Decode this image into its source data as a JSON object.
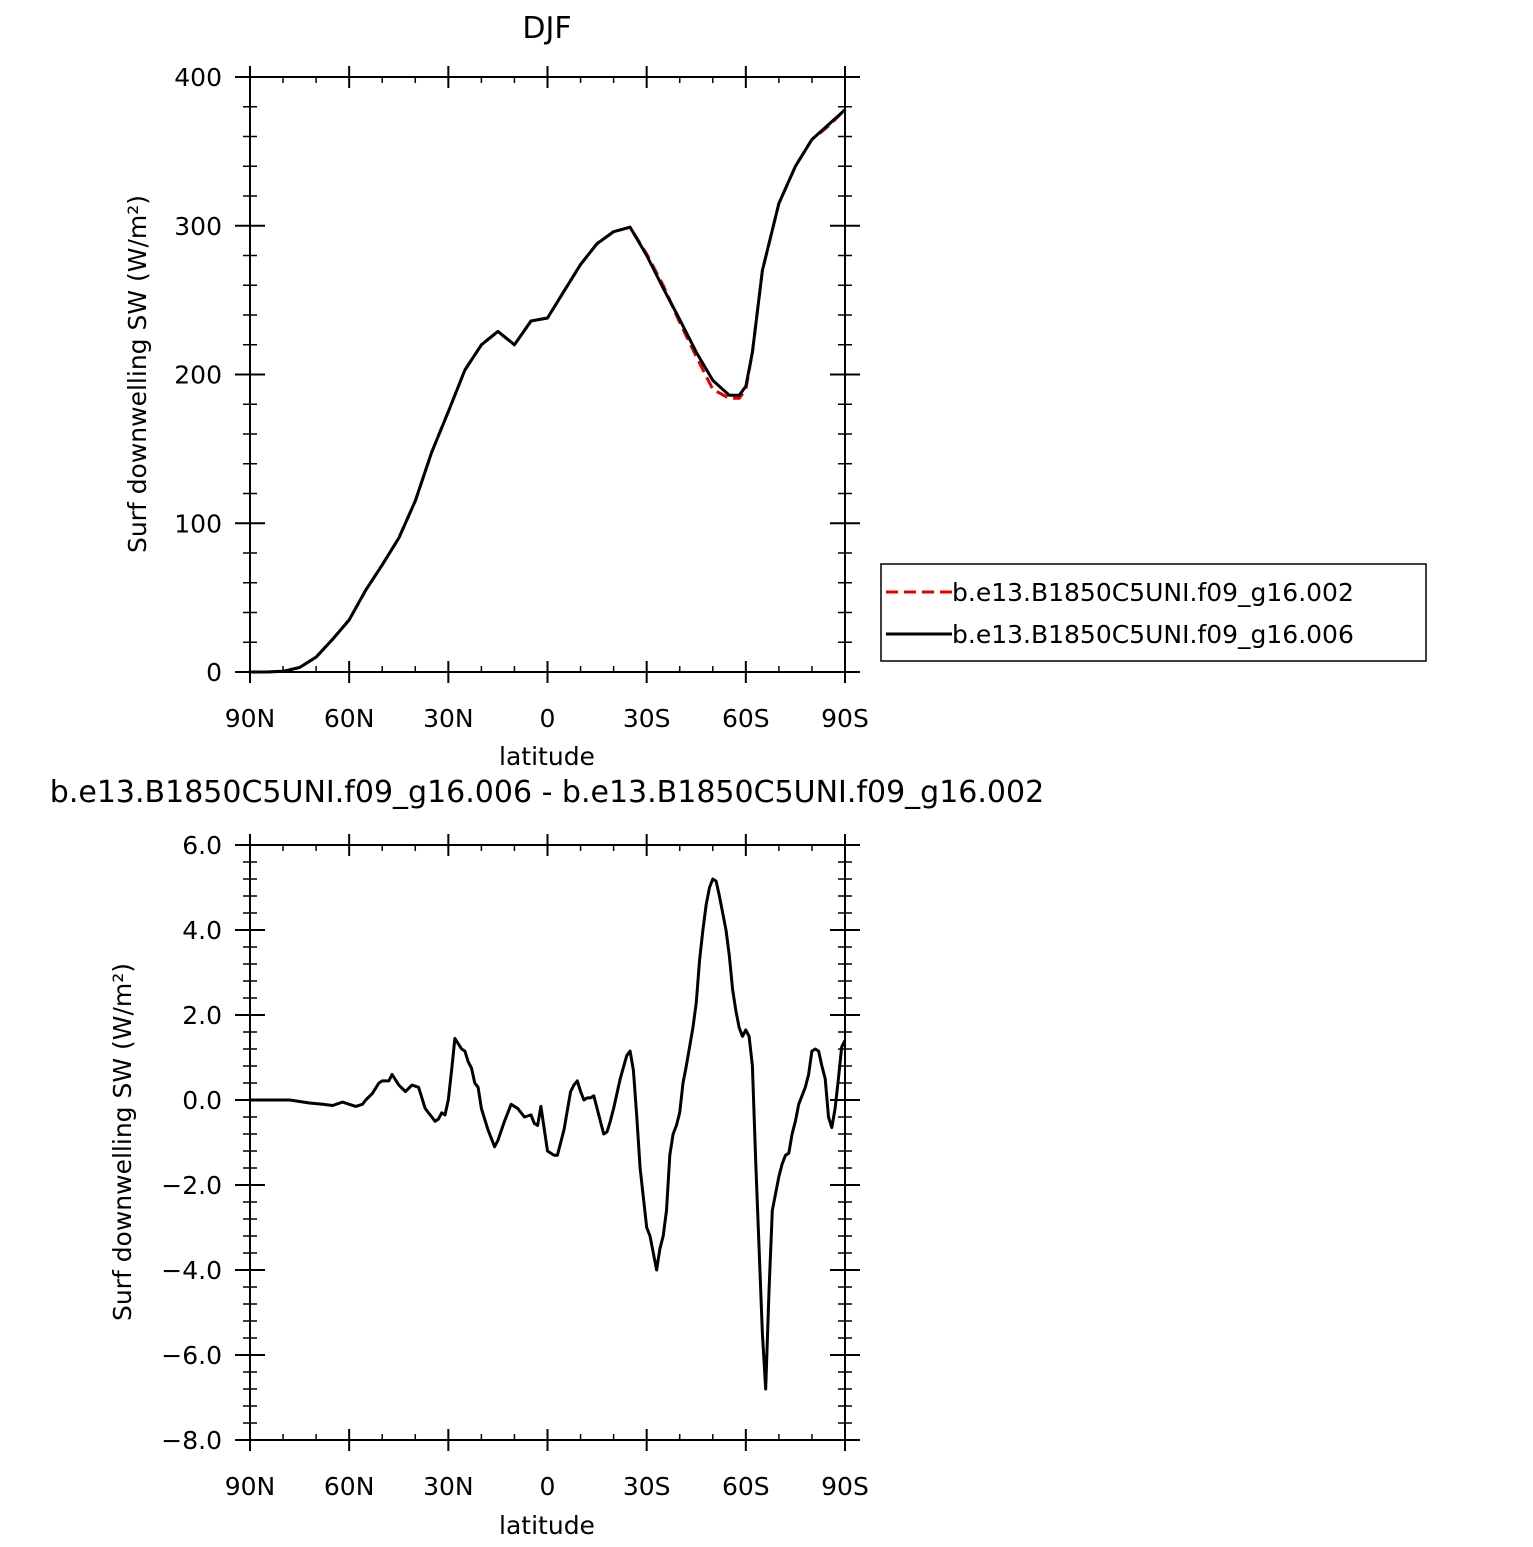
{
  "chart_data": [
    {
      "type": "line",
      "title": "DJF",
      "xlabel": "latitude",
      "ylabel": "Surf downwelling SW (W/m²)",
      "xlim": [
        -90,
        90
      ],
      "ylim": [
        0,
        400
      ],
      "x_ticks": [
        -90,
        -60,
        -30,
        0,
        30,
        60,
        90
      ],
      "x_tick_labels": [
        "90N",
        "60N",
        "30N",
        "0",
        "30S",
        "60S",
        "90S"
      ],
      "y_ticks": [
        0,
        100,
        200,
        300,
        400
      ],
      "y_tick_labels": [
        "0",
        "100",
        "200",
        "300",
        "400"
      ],
      "legend_position": "right",
      "series": [
        {
          "name": "b.e13.B1850C5UNI.f09_g16.002",
          "color": "#e00000",
          "dash": "dashed",
          "x": [
            -90,
            -85,
            -80,
            -75,
            -70,
            -65,
            -60,
            -55,
            -50,
            -45,
            -40,
            -35,
            -30,
            -25,
            -20,
            -15,
            -10,
            -5,
            0,
            5,
            10,
            15,
            20,
            25,
            30,
            35,
            40,
            45,
            50,
            55,
            58,
            60,
            62,
            65,
            70,
            75,
            80,
            85,
            90
          ],
          "y": [
            0,
            0,
            0.5,
            3,
            10,
            22,
            35,
            55,
            72,
            90,
            115,
            148,
            175,
            203,
            220,
            229,
            220,
            236,
            238,
            256,
            274,
            288,
            296,
            299,
            281,
            260,
            235,
            212,
            190,
            184,
            184,
            190,
            215,
            270,
            315,
            340,
            358,
            367,
            378
          ]
        },
        {
          "name": "b.e13.B1850C5UNI.f09_g16.006",
          "color": "#000000",
          "dash": "solid",
          "x": [
            -90,
            -85,
            -80,
            -75,
            -70,
            -65,
            -60,
            -55,
            -50,
            -45,
            -40,
            -35,
            -30,
            -25,
            -20,
            -15,
            -10,
            -5,
            0,
            5,
            10,
            15,
            20,
            25,
            30,
            35,
            40,
            45,
            50,
            55,
            58,
            60,
            62,
            65,
            70,
            75,
            80,
            85,
            90
          ],
          "y": [
            0,
            0,
            0.5,
            3,
            10,
            22,
            35,
            55,
            72,
            90,
            115,
            148,
            175,
            203,
            220,
            229,
            220,
            236,
            238,
            256,
            274,
            288,
            296,
            299,
            280,
            258,
            237,
            215,
            196,
            186,
            186,
            192,
            215,
            270,
            315,
            340,
            358,
            368,
            378
          ]
        }
      ]
    },
    {
      "type": "line",
      "title": "b.e13.B1850C5UNI.f09_g16.006 - b.e13.B1850C5UNI.f09_g16.002",
      "xlabel": "latitude",
      "ylabel": "Surf downwelling SW (W/m²)",
      "xlim": [
        -90,
        90
      ],
      "ylim": [
        -8,
        6
      ],
      "x_ticks": [
        -90,
        -60,
        -30,
        0,
        30,
        60,
        90
      ],
      "x_tick_labels": [
        "90N",
        "60N",
        "30N",
        "0",
        "30S",
        "60S",
        "90S"
      ],
      "y_ticks": [
        -8,
        -6,
        -4,
        -2,
        0,
        2,
        4,
        6
      ],
      "y_tick_labels": [
        "-8.0",
        "-6.0",
        "-4.0",
        "-2.0",
        "0.0",
        "2.0",
        "4.0",
        "6.0"
      ],
      "series": [
        {
          "color": "#000000",
          "dash": "solid",
          "x": [
            -90,
            -78,
            -72,
            -68,
            -65,
            -62,
            -60,
            -58,
            -56,
            -55,
            -53,
            -51,
            -50,
            -48,
            -47,
            -45,
            -43,
            -41,
            -39,
            -37,
            -35,
            -34,
            -33,
            -32,
            -31,
            -30,
            -29,
            -28,
            -26,
            -25,
            -24,
            -23,
            -22,
            -21,
            -20,
            -18,
            -16,
            -15,
            -13,
            -11,
            -9,
            -7,
            -5,
            -4,
            -3,
            -2,
            0,
            2,
            3,
            5,
            7,
            8,
            9,
            10,
            11,
            12,
            13,
            14,
            15,
            17,
            18,
            19,
            20,
            22,
            24,
            25,
            26,
            27,
            28,
            29,
            30,
            31,
            32,
            33,
            34,
            35,
            36,
            37,
            38,
            39,
            40,
            41,
            42,
            44,
            45,
            46,
            47,
            48,
            49,
            50,
            51,
            52,
            53,
            54,
            55,
            56,
            57,
            58,
            59,
            60,
            61,
            62,
            63,
            64,
            65,
            66,
            67,
            68,
            69,
            70,
            71,
            72,
            73,
            74,
            75,
            76,
            77,
            78,
            79,
            80,
            81,
            82,
            83,
            84,
            85,
            86,
            87,
            88,
            89,
            90
          ],
          "y": [
            0,
            0,
            -0.07,
            -0.1,
            -0.13,
            -0.05,
            -0.1,
            -0.15,
            -0.1,
            0,
            0.15,
            0.4,
            0.45,
            0.45,
            0.6,
            0.35,
            0.2,
            0.35,
            0.3,
            -0.2,
            -0.4,
            -0.5,
            -0.45,
            -0.3,
            -0.35,
            0,
            0.7,
            1.45,
            1.2,
            1.15,
            0.9,
            0.75,
            0.4,
            0.3,
            -0.2,
            -0.7,
            -1.1,
            -0.95,
            -0.5,
            -0.1,
            -0.2,
            -0.4,
            -0.35,
            -0.55,
            -0.6,
            -0.15,
            -1.2,
            -1.3,
            -1.3,
            -0.7,
            0.2,
            0.35,
            0.45,
            0.2,
            0,
            0.05,
            0.05,
            0.1,
            -0.2,
            -0.8,
            -0.75,
            -0.5,
            -0.2,
            0.5,
            1.05,
            1.15,
            0.7,
            -0.4,
            -1.6,
            -2.3,
            -3.0,
            -3.2,
            -3.6,
            -4.0,
            -3.5,
            -3.2,
            -2.6,
            -1.3,
            -0.8,
            -0.6,
            -0.3,
            0.4,
            0.8,
            1.7,
            2.3,
            3.3,
            4.0,
            4.6,
            5.0,
            5.2,
            5.15,
            4.8,
            4.4,
            4.0,
            3.4,
            2.6,
            2.1,
            1.7,
            1.5,
            1.65,
            1.5,
            0.8,
            -1.5,
            -3.5,
            -5.5,
            -6.8,
            -4.5,
            -2.6,
            -2.2,
            -1.8,
            -1.5,
            -1.3,
            -1.25,
            -0.8,
            -0.5,
            -0.1,
            0.1,
            0.3,
            0.6,
            1.15,
            1.2,
            1.15,
            0.8,
            0.5,
            -0.4,
            -0.65,
            -0.2,
            0.5,
            1.25,
            1.4
          ]
        }
      ]
    }
  ]
}
